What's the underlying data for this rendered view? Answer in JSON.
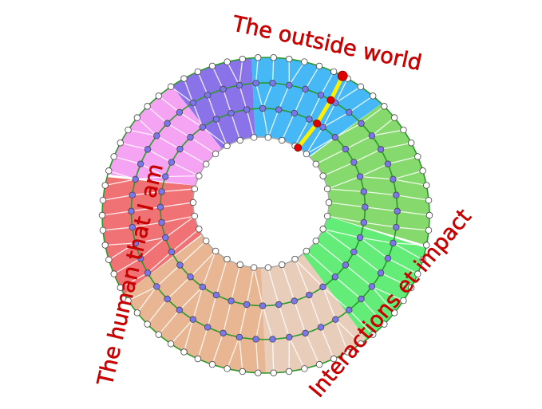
{
  "labels": {
    "top": "The outside world",
    "left": "The human that I am",
    "bottom_right": "Interactions et impact"
  },
  "sectors": [
    {
      "name": "blue",
      "color": "#45b8f5"
    },
    {
      "name": "light-green",
      "color": "#86d96c"
    },
    {
      "name": "green",
      "color": "#63ec78"
    },
    {
      "name": "peach",
      "color": "#e9cdbb"
    },
    {
      "name": "tan",
      "color": "#e8b692"
    },
    {
      "name": "red",
      "color": "#f07274"
    },
    {
      "name": "pink",
      "color": "#f5a3f3"
    },
    {
      "name": "purple",
      "color": "#8a73e8"
    }
  ],
  "colors": {
    "ring_line": "#2a9a2a",
    "spoke": "#ffffff",
    "inner_node": "#7b76ee",
    "outer_node": "#ffffff",
    "path": "#ffee00",
    "path_node": "#e00000",
    "label": "#d40000"
  }
}
